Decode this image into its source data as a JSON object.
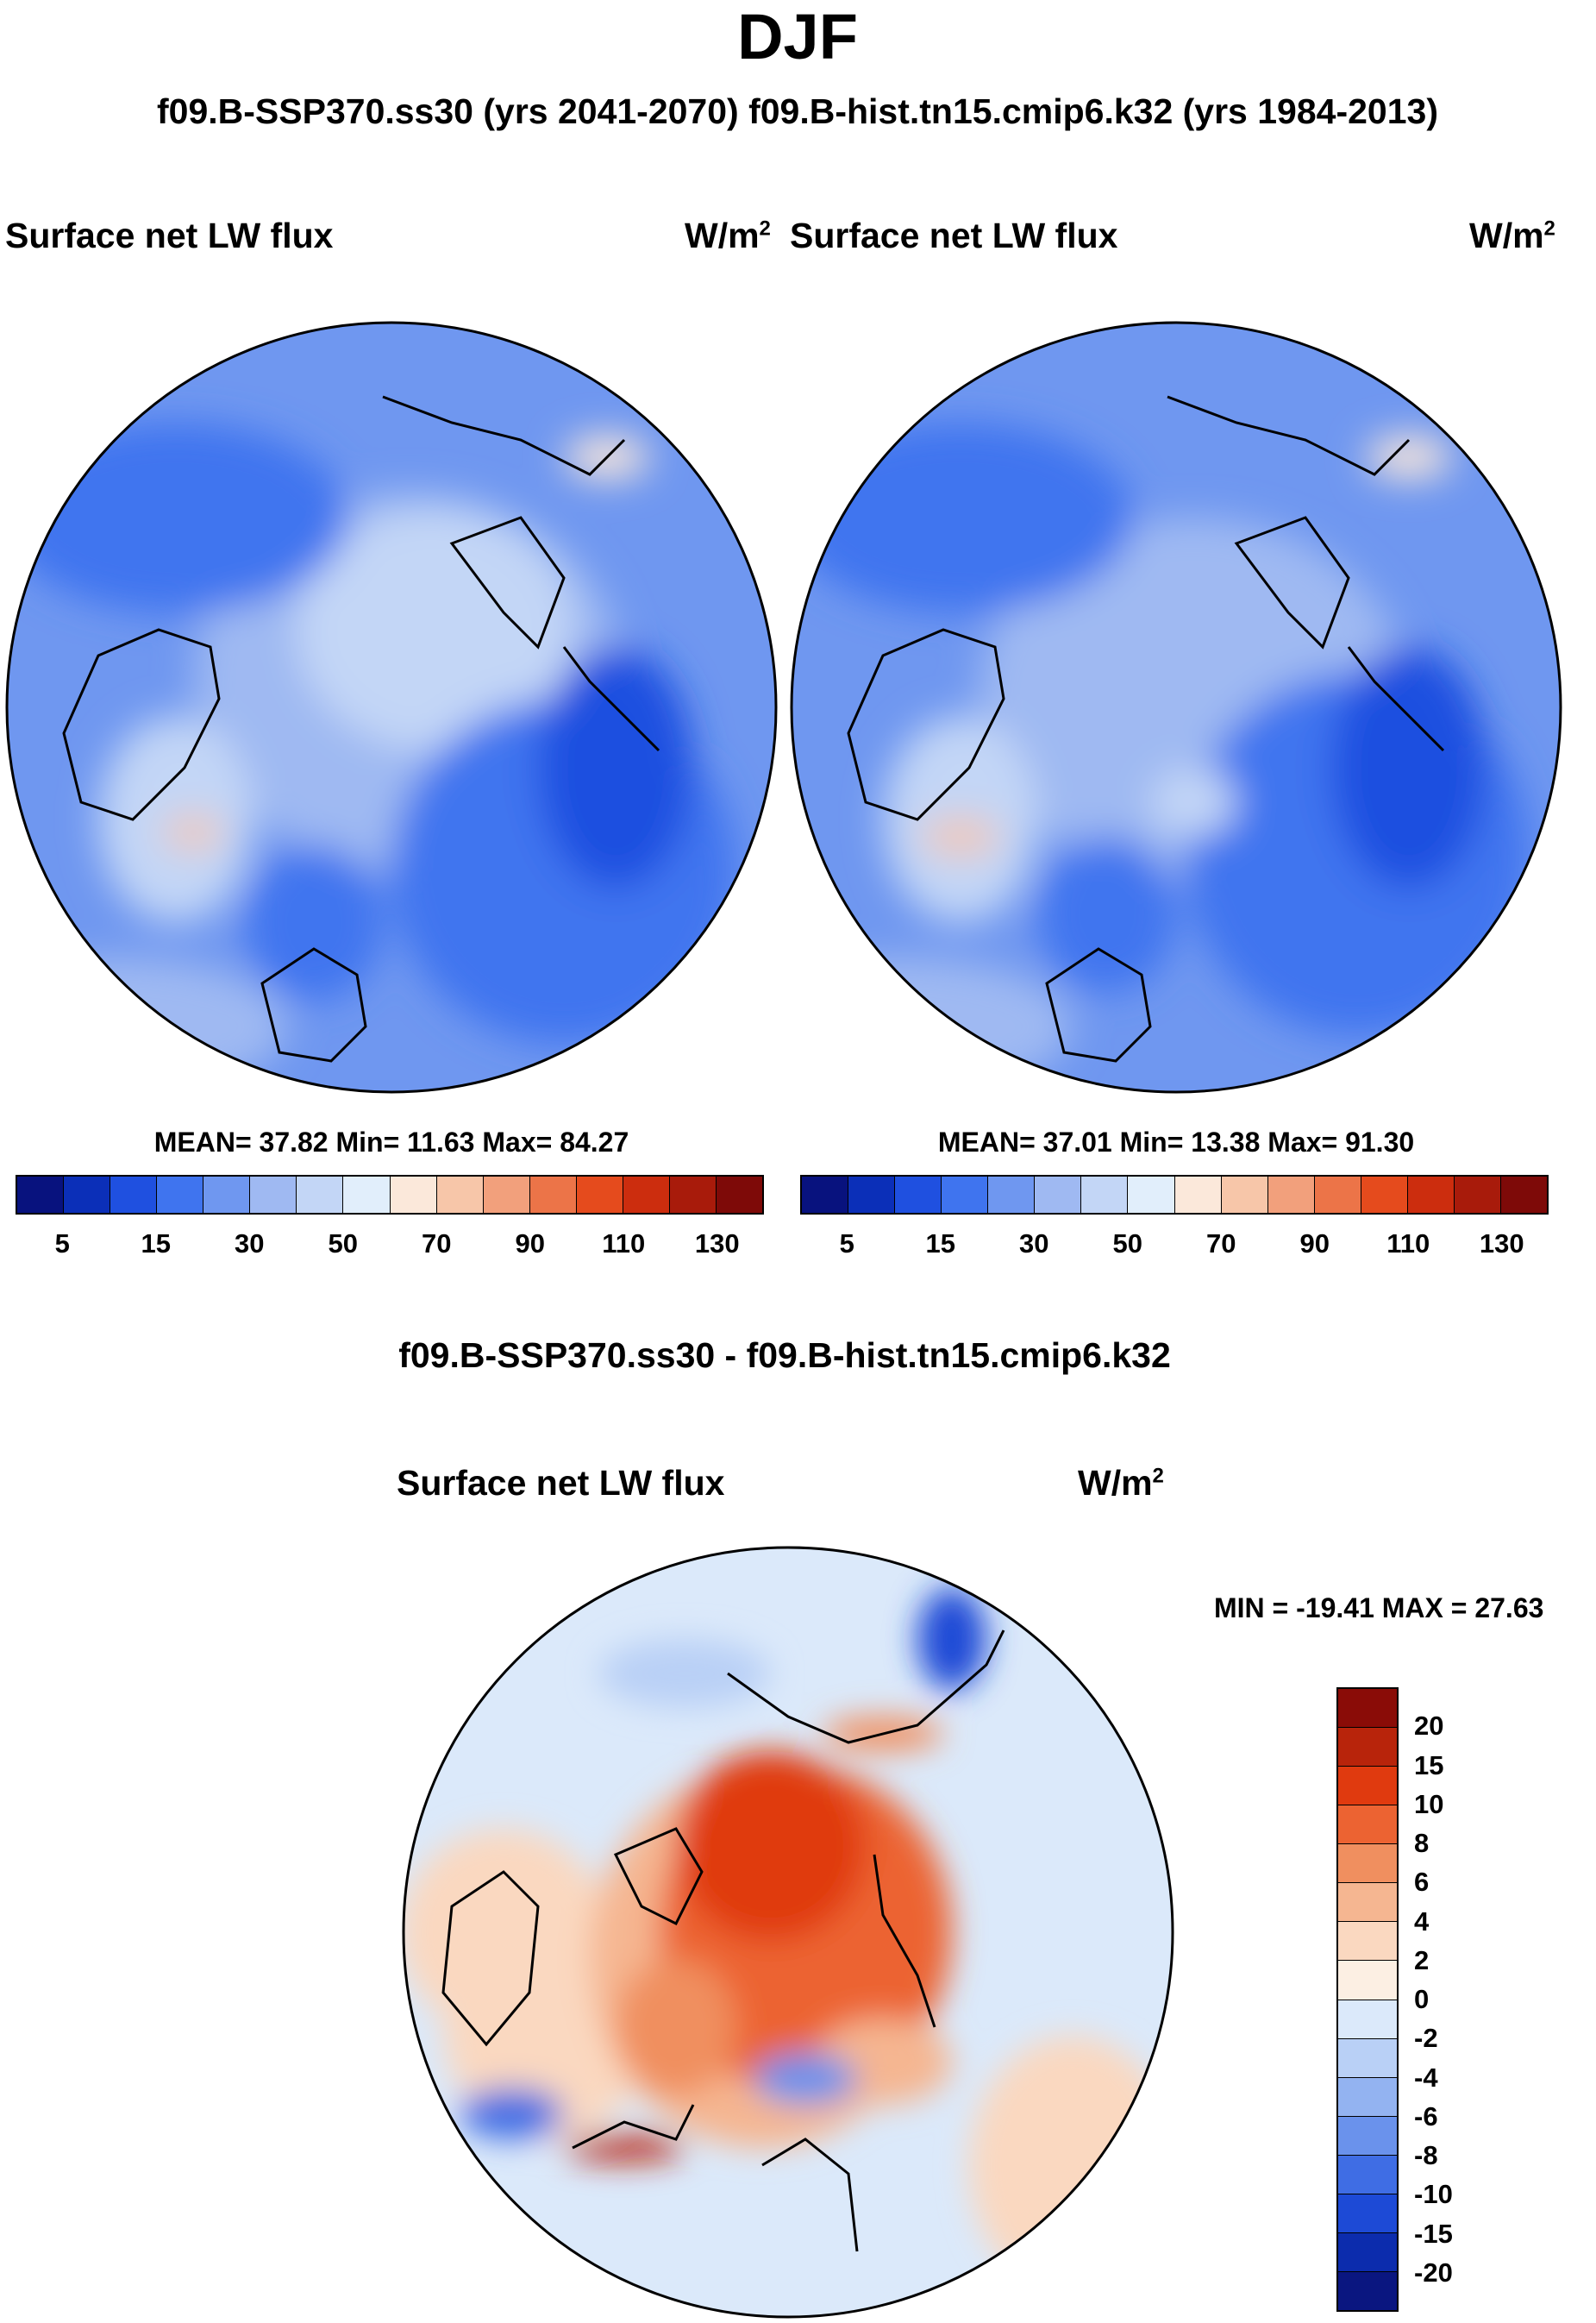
{
  "title": "DJF",
  "subtitle": "f09.B-SSP370.ss30 (yrs 2041-2070)  f09.B-hist.tn15.cmip6.k32 (yrs 1984-2013)",
  "top_left": {
    "variable": "Surface net LW flux",
    "units_base": "W/m",
    "units_exp": "2",
    "stats": "MEAN=  37.82  Min=  11.63  Max=  84.27"
  },
  "top_right": {
    "variable": "Surface net LW flux",
    "units_base": "W/m",
    "units_exp": "2",
    "stats": "MEAN=  37.01  Min=  13.38  Max=  91.30"
  },
  "diff_title": "f09.B-SSP370.ss30 - f09.B-hist.tn15.cmip6.k32",
  "bottom": {
    "variable": "Surface net LW flux",
    "units_base": "W/m",
    "units_exp": "2",
    "stats": "MIN = -19.41 MAX =  27.63"
  },
  "colorbar_top": {
    "labels": [
      "5",
      "15",
      "30",
      "50",
      "70",
      "90",
      "110",
      "130"
    ],
    "colors": [
      "#08127e",
      "#0b2fb8",
      "#1f50e0",
      "#3f74ef",
      "#6f97f0",
      "#9fb9f2",
      "#c3d6f6",
      "#e1eefb",
      "#fbe8da",
      "#f7c6a9",
      "#f2a07c",
      "#ec7448",
      "#e54b1d",
      "#cc2d0e",
      "#a81b0b",
      "#7e0a08"
    ]
  },
  "colorbar_diff": {
    "labels": [
      "20",
      "15",
      "10",
      "8",
      "6",
      "4",
      "2",
      "0",
      "-2",
      "-4",
      "-6",
      "-8",
      "-10",
      "-15",
      "-20"
    ],
    "colors": [
      "#8a0c07",
      "#b8240b",
      "#e03a0f",
      "#ec6332",
      "#f08f5f",
      "#f5b691",
      "#fad8c0",
      "#fcefe3",
      "#dbe9fa",
      "#b9d0f6",
      "#93b3f1",
      "#6a92ec",
      "#3f6de4",
      "#1d4ad6",
      "#0c2cad",
      "#0a1680"
    ]
  }
}
